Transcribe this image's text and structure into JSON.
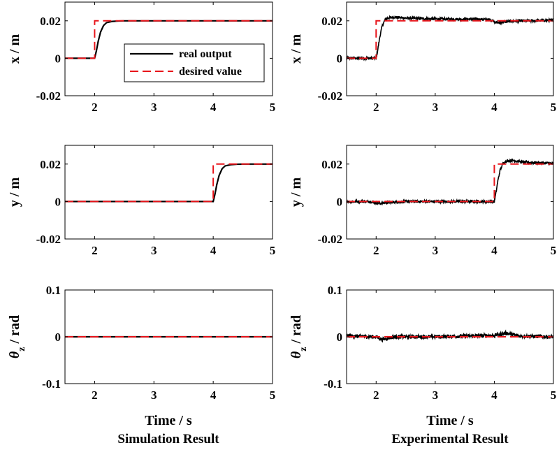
{
  "colors": {
    "real": "#000000",
    "desired": "#e8141a",
    "axes": "#000000"
  },
  "legend": {
    "entries": [
      "real output",
      "desired value"
    ],
    "placement": "inside top-right of first panel"
  },
  "columns": [
    {
      "title": "Simulation Result",
      "xlabel": "Time / s"
    },
    {
      "title": "Experimental Result",
      "xlabel": "Time / s"
    }
  ],
  "chart_data": [
    {
      "type": "line",
      "panel": "sim-x",
      "ylabel": "x / m",
      "xlim": [
        1.5,
        5
      ],
      "ylim": [
        -0.02,
        0.03
      ],
      "xticks": [
        2,
        3,
        4,
        5
      ],
      "yticks": [
        0.02,
        0,
        -0.02
      ],
      "ytick_labels": [
        "0.02",
        "0",
        "-0.02"
      ],
      "step_time": 2,
      "initial": 0,
      "final": 0.02,
      "series": [
        {
          "name": "real output",
          "x": [
            1.5,
            2.0,
            2.03,
            2.06,
            2.1,
            2.15,
            2.2,
            2.3,
            2.4,
            2.5,
            5.0
          ],
          "y": [
            0,
            0,
            0.004,
            0.009,
            0.014,
            0.0175,
            0.019,
            0.0197,
            0.0199,
            0.02,
            0.02
          ]
        },
        {
          "name": "desired value",
          "x": [
            1.5,
            2.0,
            2.0,
            5.0
          ],
          "y": [
            0,
            0,
            0.02,
            0.02
          ]
        }
      ]
    },
    {
      "type": "line",
      "panel": "exp-x",
      "ylabel": "x / m",
      "xlim": [
        1.5,
        5
      ],
      "ylim": [
        -0.02,
        0.03
      ],
      "xticks": [
        2,
        3,
        4,
        5
      ],
      "yticks": [
        0.02,
        0,
        -0.02
      ],
      "ytick_labels": [
        "0.02",
        "0",
        "-0.02"
      ],
      "noise": 0.0007,
      "series": [
        {
          "name": "real output",
          "x": [
            1.5,
            2.0,
            2.03,
            2.06,
            2.1,
            2.15,
            2.2,
            2.3,
            2.5,
            3.0,
            3.8,
            3.95,
            4.05,
            4.3,
            5.0
          ],
          "y": [
            0,
            0,
            0.005,
            0.011,
            0.017,
            0.0205,
            0.0215,
            0.022,
            0.0215,
            0.021,
            0.0208,
            0.0205,
            0.019,
            0.0198,
            0.0203
          ]
        },
        {
          "name": "desired value",
          "x": [
            1.5,
            2.0,
            2.0,
            5.0
          ],
          "y": [
            0,
            0,
            0.02,
            0.02
          ]
        }
      ]
    },
    {
      "type": "line",
      "panel": "sim-y",
      "ylabel": "y / m",
      "xlim": [
        1.5,
        5
      ],
      "ylim": [
        -0.02,
        0.03
      ],
      "xticks": [
        2,
        3,
        4,
        5
      ],
      "yticks": [
        0.02,
        0,
        -0.02
      ],
      "ytick_labels": [
        "0.02",
        "0",
        "-0.02"
      ],
      "series": [
        {
          "name": "real output",
          "x": [
            1.5,
            4.0,
            4.03,
            4.06,
            4.1,
            4.15,
            4.2,
            4.3,
            4.4,
            4.5,
            5.0
          ],
          "y": [
            0,
            0,
            0.004,
            0.009,
            0.014,
            0.0175,
            0.019,
            0.0197,
            0.0199,
            0.02,
            0.02
          ]
        },
        {
          "name": "desired value",
          "x": [
            1.5,
            4.0,
            4.0,
            5.0
          ],
          "y": [
            0,
            0,
            0.02,
            0.02
          ]
        }
      ]
    },
    {
      "type": "line",
      "panel": "exp-y",
      "ylabel": "y / m",
      "xlim": [
        1.5,
        5
      ],
      "ylim": [
        -0.02,
        0.03
      ],
      "xticks": [
        2,
        3,
        4,
        5
      ],
      "yticks": [
        0.02,
        0,
        -0.02
      ],
      "ytick_labels": [
        "0.02",
        "0",
        "-0.02"
      ],
      "noise": 0.0007,
      "series": [
        {
          "name": "real output",
          "x": [
            1.5,
            1.9,
            2.05,
            2.2,
            2.5,
            3.0,
            3.5,
            4.0,
            4.03,
            4.06,
            4.1,
            4.15,
            4.2,
            4.3,
            4.5,
            5.0
          ],
          "y": [
            0,
            0,
            -0.001,
            -0.0005,
            0,
            0,
            0,
            0,
            0.005,
            0.011,
            0.017,
            0.0205,
            0.0215,
            0.022,
            0.021,
            0.0203
          ]
        },
        {
          "name": "desired value",
          "x": [
            1.5,
            4.0,
            4.0,
            5.0
          ],
          "y": [
            0,
            0,
            0.02,
            0.02
          ]
        }
      ]
    },
    {
      "type": "line",
      "panel": "sim-theta",
      "ylabel": "θz / rad",
      "xlim": [
        1.5,
        5
      ],
      "ylim": [
        -0.1,
        0.1
      ],
      "xticks": [
        2,
        3,
        4,
        5
      ],
      "yticks": [
        0.1,
        0,
        -0.1
      ],
      "ytick_labels": [
        "0.1",
        "0",
        "-0.1"
      ],
      "series": [
        {
          "name": "real output",
          "x": [
            1.5,
            5.0
          ],
          "y": [
            0,
            0
          ]
        },
        {
          "name": "desired value",
          "x": [
            1.5,
            5.0
          ],
          "y": [
            0,
            0
          ]
        }
      ]
    },
    {
      "type": "line",
      "panel": "exp-theta",
      "ylabel": "θz / rad",
      "xlim": [
        1.5,
        5
      ],
      "ylim": [
        -0.1,
        0.1
      ],
      "xticks": [
        2,
        3,
        4,
        5
      ],
      "yticks": [
        0.1,
        0,
        -0.1
      ],
      "ytick_labels": [
        "0.1",
        "0",
        "-0.1"
      ],
      "noise": 0.004,
      "series": [
        {
          "name": "real output",
          "x": [
            1.5,
            2.0,
            2.1,
            2.3,
            3.0,
            4.0,
            4.2,
            4.4,
            5.0
          ],
          "y": [
            0.002,
            0.0,
            -0.006,
            0.0,
            0.0,
            0.003,
            0.008,
            0.002,
            0.0
          ]
        },
        {
          "name": "desired value",
          "x": [
            1.5,
            5.0
          ],
          "y": [
            0,
            0
          ]
        }
      ]
    }
  ]
}
